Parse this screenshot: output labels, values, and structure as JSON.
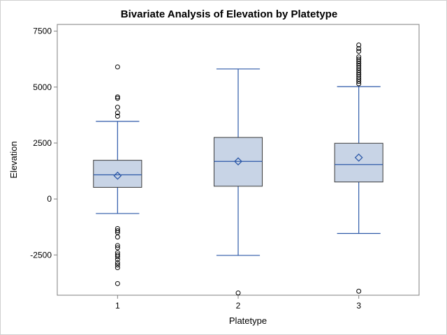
{
  "chart_data": {
    "type": "box",
    "title": "Bivariate Analysis of Elevation by Platetype",
    "xlabel": "Platetype",
    "ylabel": "Elevation",
    "ylim": [
      -4300,
      7800
    ],
    "yticks": [
      -2500,
      0,
      2500,
      5000,
      7500
    ],
    "ytick_labels": [
      "-2500",
      "0",
      "2500",
      "5000",
      "7500"
    ],
    "categories": [
      "1",
      "2",
      "3"
    ],
    "grid": false,
    "colors": {
      "box_fill": "#c8d4e6",
      "box_stroke": "#3a3a3a",
      "whisker": "#2d59a8",
      "median": "#2d59a8",
      "mean_marker": "#2d59a8",
      "outlier": "#000000",
      "frame": "#7f7f7f"
    },
    "boxes": [
      {
        "category": "1",
        "whisker_low": -650,
        "q1": 520,
        "median": 1080,
        "q3": 1730,
        "whisker_high": 3470,
        "mean": 1040,
        "outliers": [
          5900,
          4560,
          4500,
          4100,
          3850,
          3700,
          -1320,
          -1420,
          -1500,
          -1700,
          -2080,
          -2180,
          -2400,
          -2500,
          -2580,
          -2700,
          -2850,
          -2950,
          -3070,
          -3780
        ]
      },
      {
        "category": "2",
        "whisker_low": -2520,
        "q1": 570,
        "median": 1680,
        "q3": 2750,
        "whisker_high": 5810,
        "mean": 1680,
        "outliers": [
          -4200
        ]
      },
      {
        "category": "3",
        "whisker_low": -1540,
        "q1": 760,
        "median": 1540,
        "q3": 2490,
        "whisker_high": 5020,
        "mean": 1850,
        "outliers": [
          6880,
          6720,
          6600,
          6350,
          6250,
          6150,
          6050,
          5950,
          5850,
          5750,
          5650,
          5550,
          5450,
          5350,
          5250,
          5150,
          -4120
        ]
      }
    ]
  }
}
